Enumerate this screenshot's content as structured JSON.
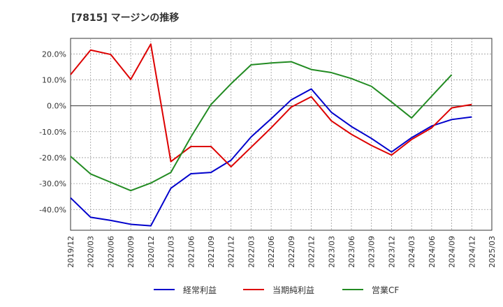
{
  "chart_data": {
    "type": "line",
    "title": "[7815]  マージンの推移",
    "xlabel": "",
    "ylabel": "",
    "ylim": [
      -48,
      26
    ],
    "yticks": [
      20,
      10,
      0,
      -10,
      -20,
      -30,
      -40
    ],
    "ytick_labels": [
      "20.0%",
      "10.0%",
      "0.0%",
      "-10.0%",
      "-20.0%",
      "-30.0%",
      "-40.0%"
    ],
    "categories": [
      "2019/12",
      "2020/03",
      "2020/06",
      "2020/09",
      "2020/12",
      "2021/03",
      "2021/06",
      "2021/09",
      "2021/12",
      "2022/03",
      "2022/06",
      "2022/09",
      "2022/12",
      "2023/03",
      "2023/06",
      "2023/09",
      "2023/12",
      "2024/03",
      "2024/06",
      "2024/09",
      "2024/12",
      "2025/03"
    ],
    "legend_position": "bottom",
    "grid": true,
    "series": [
      {
        "name": "経常利益",
        "color": "#0000cc",
        "values": [
          -35.5,
          -43.0,
          -44.2,
          -45.7,
          -46.3,
          -31.8,
          -26.2,
          -25.7,
          -21.0,
          -12.0,
          -5.0,
          2.3,
          6.5,
          -2.5,
          -8.0,
          -12.6,
          -17.8,
          -12.3,
          -7.8,
          -5.3,
          -4.3,
          null
        ]
      },
      {
        "name": "当期純利益",
        "color": "#dd0000",
        "values": [
          12.0,
          21.5,
          19.8,
          10.2,
          23.8,
          -21.5,
          -15.7,
          -15.7,
          -23.5,
          -16.0,
          -8.5,
          -0.5,
          3.5,
          -5.8,
          -11.0,
          -15.3,
          -19.0,
          -13.0,
          -8.5,
          -0.8,
          0.5,
          null
        ]
      },
      {
        "name": "営業CF",
        "color": "#228b22",
        "values": [
          -19.5,
          -26.3,
          -29.5,
          -32.7,
          -29.8,
          -25.7,
          -12.0,
          0.5,
          8.5,
          15.8,
          16.5,
          17.0,
          14.0,
          12.8,
          10.5,
          7.5,
          1.5,
          -4.7,
          3.7,
          12.0,
          null,
          null
        ]
      }
    ]
  }
}
